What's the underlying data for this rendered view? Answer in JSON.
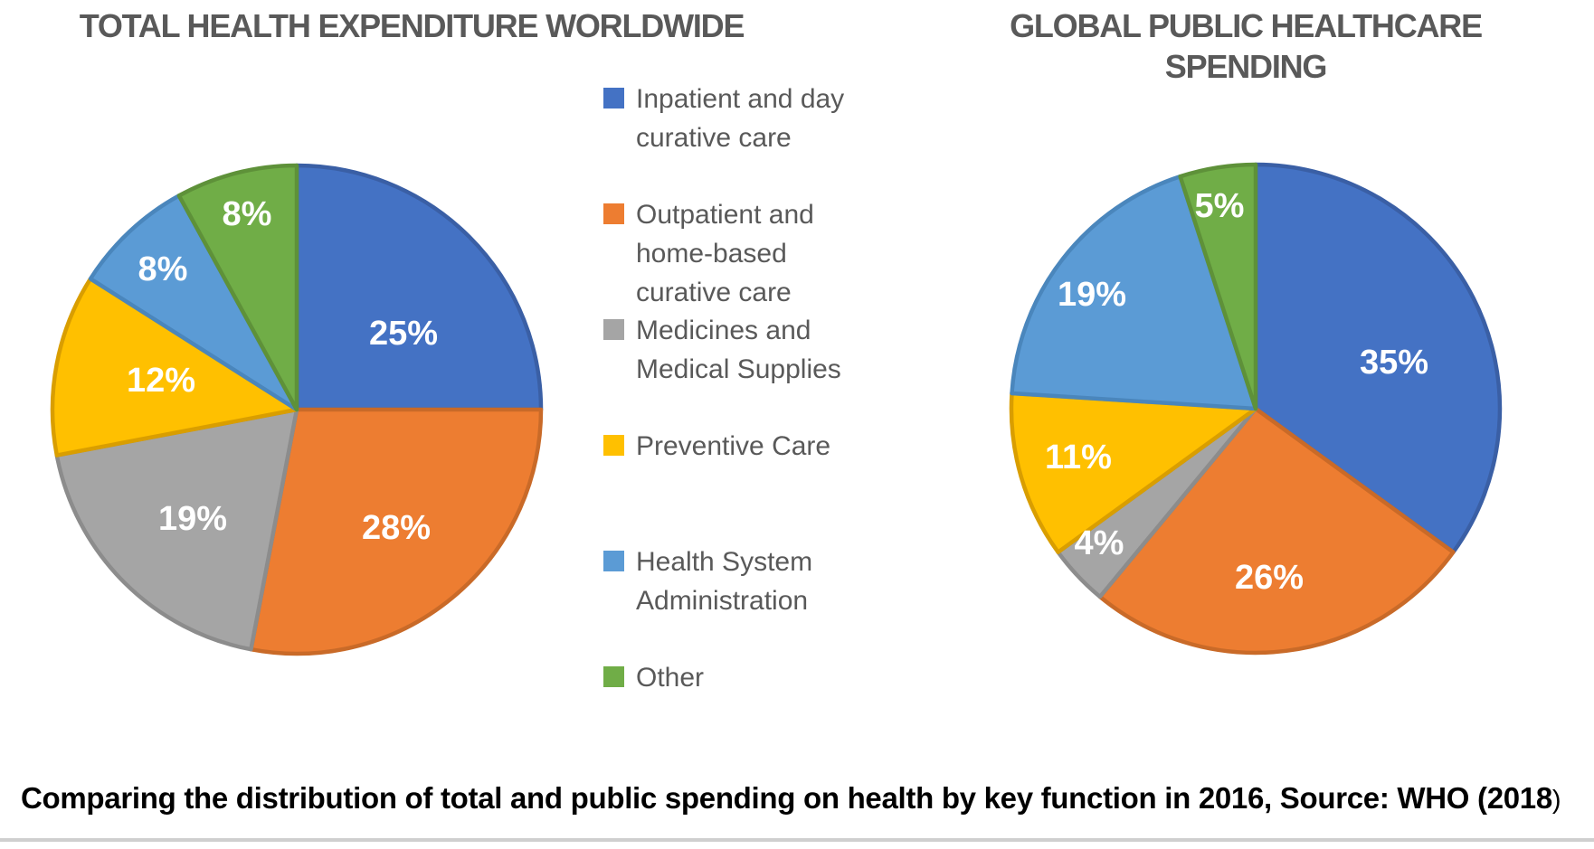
{
  "caption": {
    "text": "Comparing the distribution of total and public spending on health by key function in 2016, Source: WHO (2018",
    "suffix": ")"
  },
  "legend": {
    "items": [
      {
        "label": "Inpatient and day curative care",
        "color": "#4472C4"
      },
      {
        "label": "Outpatient and home-based curative care",
        "color": "#ED7D31"
      },
      {
        "label": "Medicines and Medical Supplies",
        "color": "#A5A5A5"
      },
      {
        "label": "Preventive Care",
        "color": "#FFC000"
      },
      {
        "label": "Health System Administration",
        "color": "#5B9BD5"
      },
      {
        "label": "Other",
        "color": "#70AD47"
      }
    ]
  },
  "chart_data": [
    {
      "type": "pie",
      "title": "TOTAL HEALTH EXPENDITURE WORLDWIDE",
      "categories": [
        "Inpatient and day curative care",
        "Outpatient and home-based curative care",
        "Medicines and Medical Supplies",
        "Preventive Care",
        "Health System Administration",
        "Other"
      ],
      "values": [
        25,
        28,
        19,
        12,
        8,
        8
      ],
      "labels": [
        "25%",
        "28%",
        "19%",
        "12%",
        "8%",
        "8%"
      ],
      "unit": "%",
      "colors": [
        "#4472C4",
        "#ED7D31",
        "#A5A5A5",
        "#FFC000",
        "#5B9BD5",
        "#70AD47"
      ],
      "slice_border_colors": [
        "#3A5FA5",
        "#C96A28",
        "#8C8C8C",
        "#D99E00",
        "#4A86BC",
        "#5E9139"
      ],
      "data_label_color": "#FFFFFF",
      "start_angle": 0,
      "direction": "clockwise",
      "legend_position": "between-charts"
    },
    {
      "type": "pie",
      "title": "GLOBAL PUBLIC HEALTHCARE SPENDING",
      "categories": [
        "Inpatient and day curative care",
        "Outpatient and home-based curative care",
        "Medicines and Medical Supplies",
        "Preventive Care",
        "Health System Administration",
        "Other"
      ],
      "values": [
        35,
        26,
        4,
        11,
        19,
        5
      ],
      "labels": [
        "35%",
        "26%",
        "4%",
        "11%",
        "19%",
        "5%"
      ],
      "unit": "%",
      "colors": [
        "#4472C4",
        "#ED7D31",
        "#A5A5A5",
        "#FFC000",
        "#5B9BD5",
        "#70AD47"
      ],
      "slice_border_colors": [
        "#3A5FA5",
        "#C96A28",
        "#8C8C8C",
        "#D99E00",
        "#4A86BC",
        "#5E9139"
      ],
      "data_label_color": "#FFFFFF",
      "start_angle": 0,
      "direction": "clockwise",
      "legend_position": "between-charts"
    }
  ]
}
